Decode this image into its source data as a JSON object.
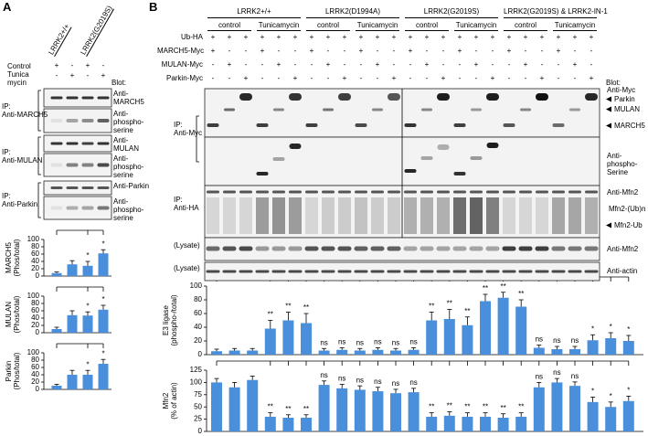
{
  "panel_a": {
    "label": "A",
    "genotypes": [
      "LRRK2+/+",
      "LRRK2(G2019S)"
    ],
    "treatments": [
      {
        "name": "Control",
        "signs": [
          "+",
          "-",
          "+",
          "-"
        ]
      },
      {
        "name": "Tunica mycin",
        "signs": [
          "-",
          "+",
          "-",
          "+"
        ]
      }
    ],
    "blot_header": "Blot:",
    "blots": [
      {
        "ip": [
          "IP:",
          "Anti-MARCH5"
        ],
        "antibodies": [
          "Anti-MARCH5",
          "Anti-phospho-serine"
        ]
      },
      {
        "ip": [
          "IP:",
          "Anti-MULAN"
        ],
        "antibodies": [
          "Anti-MULAN",
          "Anti-phospho-serine"
        ]
      },
      {
        "ip": [
          "IP:",
          "Anti-Parkin"
        ],
        "antibodies": [
          "Anti-Parkin",
          "Anti-phospho-serine"
        ]
      }
    ]
  },
  "panel_b": {
    "label": "B",
    "groups": [
      {
        "name": "LRRK2+/+",
        "conditions": [
          "control",
          "Tunicamycin"
        ]
      },
      {
        "name": "LRRK2(D1994A)",
        "conditions": [
          "control",
          "Tunicamycin"
        ]
      },
      {
        "name": "LRRK2(G2019S)",
        "conditions": [
          "control",
          "Tunicamycin"
        ]
      },
      {
        "name": "LRRK2(G2019S) & LRRK2-IN-1",
        "conditions": [
          "control",
          "Tunicamycin"
        ]
      }
    ],
    "sign_rows": [
      {
        "name": "Ub-HA",
        "signs": [
          "+",
          "+",
          "+",
          "+",
          "+",
          "+",
          "+",
          "+",
          "+",
          "+",
          "+",
          "+",
          "+",
          "+",
          "+",
          "+",
          "+",
          "+",
          "+",
          "+",
          "+",
          "+",
          "+",
          "+"
        ]
      },
      {
        "name": "MARCH5-Myc",
        "signs": [
          "+",
          "-",
          "-",
          "+",
          "-",
          "-",
          "+",
          "-",
          "-",
          "+",
          "-",
          "-",
          "+",
          "-",
          "-",
          "+",
          "-",
          "-",
          "+",
          "-",
          "-",
          "+",
          "-",
          "-"
        ]
      },
      {
        "name": "MULAN-Myc",
        "signs": [
          "-",
          "+",
          "-",
          "-",
          "+",
          "-",
          "-",
          "+",
          "-",
          "-",
          "+",
          "-",
          "-",
          "+",
          "-",
          "-",
          "+",
          "-",
          "-",
          "+",
          "-",
          "-",
          "+",
          "-"
        ]
      },
      {
        "name": "Parkin-Myc",
        "signs": [
          "-",
          "-",
          "+",
          "-",
          "-",
          "+",
          "-",
          "-",
          "+",
          "-",
          "-",
          "+",
          "-",
          "-",
          "+",
          "-",
          "-",
          "+",
          "-",
          "-",
          "+",
          "-",
          "-",
          "+"
        ]
      }
    ],
    "blot_header": "Blot:",
    "left_labels": [
      [
        "IP:",
        "Anti-Myc"
      ],
      [
        "IP:",
        "Anti-HA"
      ],
      [
        "(Lysate)"
      ],
      [
        "(Lysate)"
      ]
    ],
    "right_labels": [
      "Anti-Myc",
      "Parkin",
      "MULAN",
      "MARCH5",
      "Anti-phospho-Serine",
      "Anti-Mfn2",
      "Mfn2-(Ub)n",
      "Mfn2-Ub",
      "Anti-Mfn2",
      "Anti-actin"
    ]
  },
  "chart_data": [
    {
      "type": "bar",
      "ylabel": [
        "MARCH5",
        "(Phos/total)"
      ],
      "color": "#4a8fdb",
      "values": [
        8,
        32,
        28,
        62
      ],
      "errors": [
        3,
        10,
        12,
        10
      ],
      "significance": [
        null,
        null,
        "*",
        "*"
      ],
      "ylim": [
        0,
        100
      ],
      "yticks": [
        0,
        20,
        40,
        60,
        80,
        100
      ]
    },
    {
      "type": "bar",
      "ylabel": [
        "MULAN",
        "(Phos/total)"
      ],
      "color": "#4a8fdb",
      "values": [
        10,
        48,
        47,
        63
      ],
      "errors": [
        5,
        12,
        10,
        12
      ],
      "significance": [
        null,
        null,
        "*",
        "*"
      ],
      "ylim": [
        0,
        100
      ],
      "yticks": [
        0,
        20,
        40,
        60,
        80,
        100
      ]
    },
    {
      "type": "bar",
      "ylabel": [
        "Parkin",
        "(Phos/total)"
      ],
      "color": "#4a8fdb",
      "values": [
        10,
        40,
        40,
        70
      ],
      "errors": [
        4,
        12,
        12,
        12
      ],
      "significance": [
        null,
        null,
        "*",
        "*"
      ],
      "ylim": [
        0,
        100
      ],
      "yticks": [
        0,
        20,
        40,
        60,
        80,
        100
      ]
    },
    {
      "type": "bar",
      "ylabel": [
        "E3 ligase",
        "(phospho-/total)"
      ],
      "color": "#4a8fdb",
      "values": [
        5,
        6,
        6,
        38,
        50,
        46,
        6,
        7,
        6,
        7,
        6,
        7,
        50,
        52,
        43,
        78,
        83,
        70,
        10,
        8,
        8,
        21,
        24,
        20
      ],
      "errors": [
        3,
        3,
        3,
        12,
        12,
        14,
        3,
        3,
        3,
        3,
        3,
        3,
        12,
        14,
        12,
        10,
        8,
        10,
        4,
        4,
        4,
        8,
        8,
        8
      ],
      "significance": [
        null,
        null,
        null,
        "**",
        "**",
        "**",
        "ns",
        "ns",
        "ns",
        "ns",
        "ns",
        "ns",
        "**",
        "**",
        "**",
        "**",
        "**",
        "**",
        "ns",
        "ns",
        "ns",
        "*",
        "*",
        "*"
      ],
      "ylim": [
        0,
        100
      ],
      "yticks": [
        0,
        20,
        40,
        60,
        80,
        100
      ]
    },
    {
      "type": "bar",
      "ylabel": [
        "Mfn2",
        "(% of actin)"
      ],
      "color": "#4a8fdb",
      "values": [
        100,
        90,
        105,
        30,
        28,
        28,
        95,
        88,
        85,
        82,
        78,
        80,
        30,
        32,
        30,
        30,
        28,
        30,
        90,
        100,
        93,
        60,
        50,
        62
      ],
      "errors": [
        8,
        10,
        8,
        8,
        6,
        6,
        8,
        8,
        8,
        8,
        8,
        8,
        8,
        8,
        8,
        8,
        8,
        8,
        10,
        8,
        8,
        10,
        10,
        10
      ],
      "significance": [
        null,
        null,
        null,
        "**",
        "**",
        "**",
        "ns",
        "ns",
        "ns",
        "ns",
        "ns",
        "ns",
        "**",
        "**",
        "**",
        "**",
        "**",
        "**",
        "ns",
        "ns",
        "ns",
        "*",
        "*",
        "*"
      ],
      "ylim": [
        0,
        125
      ],
      "yticks": [
        0,
        25,
        50,
        75,
        100,
        125
      ]
    }
  ]
}
